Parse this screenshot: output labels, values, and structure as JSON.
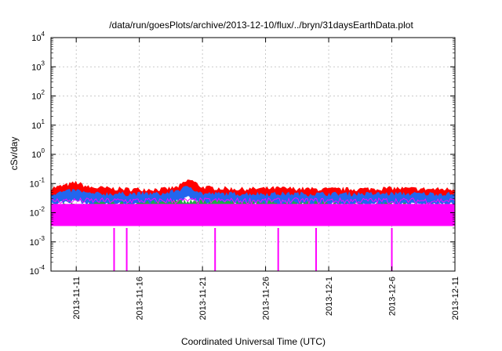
{
  "chart_data": {
    "type": "line",
    "title": "/data/run/goesPlots/archive/2013-12-10/flux/../bryn/31daysEarthData.plot",
    "xlabel": "Coordinated Universal Time (UTC)",
    "ylabel": "cSv/day",
    "x_range": [
      "2013-11-09",
      "2013-12-11"
    ],
    "x_ticks": [
      "2013-11-11",
      "2013-11-16",
      "2013-11-21",
      "2013-11-26",
      "2013-12-1",
      "2013-12-6",
      "2013-12-11"
    ],
    "x_tick_dates": [
      "2013-11-11",
      "2013-11-16",
      "2013-11-21",
      "2013-11-26",
      "2013-12-01",
      "2013-12-06",
      "2013-12-11"
    ],
    "y_scale": "log",
    "ylim": [
      0.0001,
      10000
    ],
    "y_ticks": [
      {
        "value": 0.0001,
        "mant": "10",
        "exp": "-4"
      },
      {
        "value": 0.001,
        "mant": "10",
        "exp": "-3"
      },
      {
        "value": 0.01,
        "mant": "10",
        "exp": "-2"
      },
      {
        "value": 0.1,
        "mant": "10",
        "exp": "-1"
      },
      {
        "value": 1,
        "mant": "10",
        "exp": "0"
      },
      {
        "value": 10,
        "mant": "10",
        "exp": "1"
      },
      {
        "value": 100,
        "mant": "10",
        "exp": "2"
      },
      {
        "value": 1000,
        "mant": "10",
        "exp": "3"
      },
      {
        "value": 10000,
        "mant": "10",
        "exp": "4"
      }
    ],
    "grid": true,
    "series": [
      {
        "color": "#ff0000",
        "x": [
          "2013-11-09",
          "2013-11-10",
          "2013-11-11",
          "2013-11-12",
          "2013-11-15",
          "2013-11-18",
          "2013-11-19",
          "2013-11-20",
          "2013-11-21",
          "2013-11-24",
          "2013-11-27",
          "2013-11-30",
          "2013-12-03",
          "2013-12-06",
          "2013-12-09",
          "2013-12-11"
        ],
        "y": [
          0.07,
          0.085,
          0.11,
          0.075,
          0.065,
          0.065,
          0.075,
          0.14,
          0.075,
          0.065,
          0.07,
          0.065,
          0.065,
          0.07,
          0.065,
          0.065
        ]
      },
      {
        "color": "#2266ee",
        "x": [
          "2013-11-09",
          "2013-11-11",
          "2013-11-12",
          "2013-11-15",
          "2013-11-18",
          "2013-11-20",
          "2013-11-21",
          "2013-11-24",
          "2013-11-27",
          "2013-11-30",
          "2013-12-03",
          "2013-12-06",
          "2013-12-09",
          "2013-12-11"
        ],
        "y": [
          0.045,
          0.06,
          0.045,
          0.045,
          0.045,
          0.08,
          0.045,
          0.045,
          0.045,
          0.045,
          0.045,
          0.045,
          0.045,
          0.045
        ]
      },
      {
        "color": "#22aa44",
        "x": [
          "2013-11-09",
          "2013-11-20",
          "2013-12-11"
        ],
        "y": [
          0.018,
          0.025,
          0.018
        ]
      },
      {
        "color": "#ff00ff",
        "x": [
          "2013-11-09",
          "2013-12-11"
        ],
        "y": [
          0.005,
          0.005
        ],
        "y_min": 0.0035,
        "y_max": 0.02
      },
      {
        "color": "#ff00ff",
        "type": "spikes",
        "x": [
          "2013-11-14",
          "2013-11-15",
          "2013-11-22",
          "2013-11-27",
          "2013-11-30",
          "2013-12-06"
        ],
        "y": [
          0.0001,
          0.0001,
          0.0001,
          0.0001,
          0.0001,
          0.0001
        ]
      }
    ]
  }
}
